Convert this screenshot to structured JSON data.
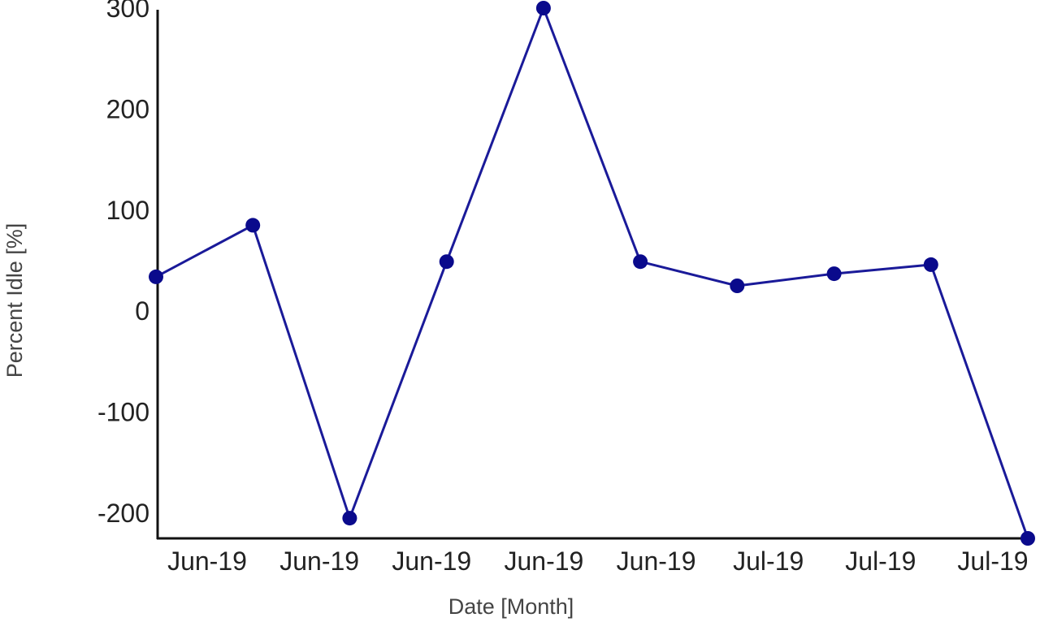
{
  "chart_data": {
    "type": "line",
    "xlabel": "Date [Month]",
    "ylabel": "Percent Idle [%]",
    "ylim": [
      -225,
      300
    ],
    "yticks": [
      300,
      200,
      100,
      0,
      -100,
      -200
    ],
    "ytick_labels": [
      "300",
      "200",
      "100",
      "0",
      "-100",
      "-200"
    ],
    "xtick_labels": [
      "Jun-19",
      "Jun-19",
      "Jun-19",
      "Jun-19",
      "Jun-19",
      "Jul-19",
      "Jul-19",
      "Jul-19"
    ],
    "grid": false,
    "color": "#1a1a99",
    "series": [
      {
        "values": [
          34,
          85,
          -205,
          49,
          300,
          49,
          25,
          37,
          46,
          -225
        ]
      }
    ]
  }
}
